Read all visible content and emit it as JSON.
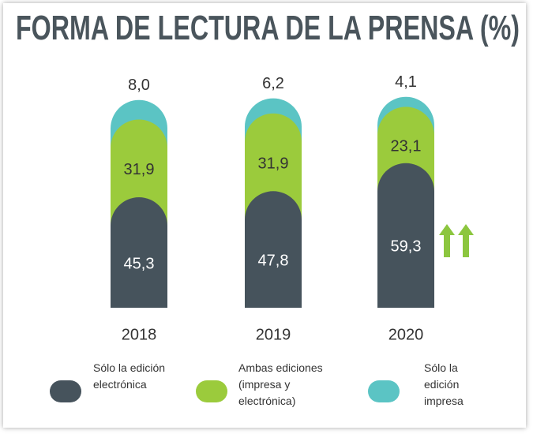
{
  "chart_data": {
    "type": "stacked_bar",
    "title": "FORMA DE LECTURA DE LA PRENSA (%)",
    "categories": [
      "2018",
      "2019",
      "2020"
    ],
    "series": [
      {
        "name": "Sólo la edición electrónica",
        "color": "#46535c",
        "values": [
          45.3,
          47.8,
          59.3
        ],
        "value_labels": [
          "45,3",
          "47,8",
          "59,3"
        ]
      },
      {
        "name": "Ambas ediciones (impresa y electrónica)",
        "color": "#9bcb3c",
        "values": [
          31.9,
          31.9,
          23.1
        ],
        "value_labels": [
          "31,9",
          "31,9",
          "23,1"
        ]
      },
      {
        "name": "Sólo la edición impresa",
        "color": "#5bc4c4",
        "values": [
          8.0,
          6.2,
          4.1
        ],
        "value_labels": [
          "8,0",
          "6,2",
          "4,1"
        ]
      }
    ]
  }
}
